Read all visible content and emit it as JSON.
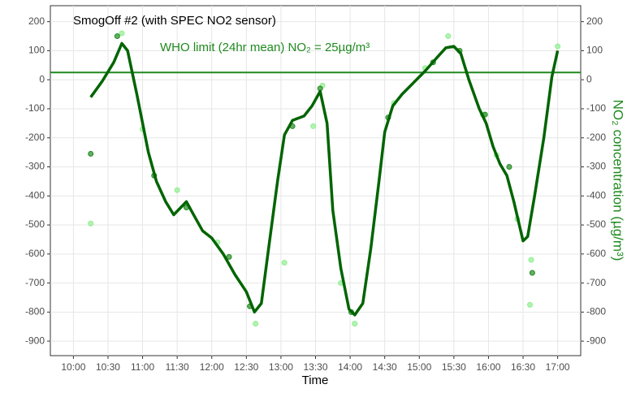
{
  "chart_data": {
    "type": "line",
    "title": "SmogOff #2 (with SPEC NO2 sensor)",
    "annotation": "WHO limit (24hr mean) NO₂ = 25µg/m³",
    "x_label": "Time",
    "y2_label": "NO₂ concentration (µg/m³)",
    "xlim": [
      "09:40",
      "17:20"
    ],
    "xticks": [
      "10:00",
      "10:30",
      "11:00",
      "11:30",
      "12:00",
      "12:30",
      "13:00",
      "13:30",
      "14:00",
      "14:30",
      "15:00",
      "15:30",
      "16:00",
      "16:30",
      "17:00"
    ],
    "ylim": [
      -950,
      255
    ],
    "yticks": [
      200,
      100,
      0,
      -100,
      -200,
      -300,
      -400,
      -500,
      -600,
      -700,
      -800,
      -900
    ],
    "y2lim": [
      -950,
      255
    ],
    "y2ticks": [
      200,
      100,
      0,
      -100,
      -200,
      -300,
      -400,
      -500,
      -600,
      -700,
      -800,
      -900
    ],
    "grid": true,
    "hline": {
      "value": 25,
      "color": "#1f8a1f"
    },
    "series": [
      {
        "color": "#006400",
        "x": [
          "10:15",
          "10:25",
          "10:35",
          "10:42",
          "10:47",
          "10:55",
          "11:00",
          "11:05",
          "11:12",
          "11:20",
          "11:27",
          "11:38",
          "11:45",
          "11:52",
          "12:00",
          "12:10",
          "12:20",
          "12:30",
          "12:37",
          "12:43",
          "12:50",
          "12:57",
          "13:03",
          "13:10",
          "13:20",
          "13:27",
          "13:34",
          "13:40",
          "13:45",
          "13:52",
          "13:59",
          "14:04",
          "14:11",
          "14:18",
          "14:25",
          "14:30",
          "14:37",
          "14:45",
          "14:55",
          "15:05",
          "15:15",
          "15:23",
          "15:30",
          "15:36",
          "15:43",
          "15:52",
          "15:58",
          "16:04",
          "16:10",
          "16:16",
          "16:22",
          "16:30",
          "16:34",
          "16:40",
          "16:48",
          "16:55",
          "17:00"
        ],
        "values": [
          -60,
          -5,
          60,
          125,
          100,
          -50,
          -150,
          -250,
          -350,
          -420,
          -465,
          -420,
          -470,
          -520,
          -545,
          -600,
          -670,
          -730,
          -800,
          -770,
          -560,
          -350,
          -190,
          -140,
          -125,
          -90,
          -40,
          -150,
          -450,
          -650,
          -790,
          -810,
          -770,
          -580,
          -350,
          -180,
          -90,
          -50,
          -10,
          30,
          75,
          110,
          115,
          90,
          0,
          -100,
          -150,
          -230,
          -290,
          -330,
          -420,
          -555,
          -540,
          -400,
          -200,
          10,
          100
        ]
      }
    ],
    "scatter": [
      {
        "color": "#90ee90",
        "x": [
          "10:15",
          "10:42",
          "11:00",
          "11:30",
          "12:05",
          "12:38",
          "13:03",
          "13:28",
          "13:36",
          "13:52",
          "14:04",
          "14:38",
          "15:05",
          "15:25",
          "15:55",
          "16:07",
          "16:25",
          "16:37",
          "16:36",
          "17:00"
        ],
        "values": [
          -495,
          160,
          -170,
          -380,
          -560,
          -840,
          -630,
          -160,
          -20,
          -700,
          -840,
          -80,
          40,
          150,
          -120,
          -260,
          -480,
          -620,
          -775,
          115
        ]
      },
      {
        "color": "#228b22",
        "x": [
          "10:15",
          "10:38",
          "11:10",
          "11:38",
          "12:15",
          "12:33",
          "13:10",
          "13:34",
          "14:01",
          "14:33",
          "15:12",
          "15:35",
          "15:57",
          "16:18",
          "16:38"
        ],
        "values": [
          -255,
          150,
          -330,
          -440,
          -610,
          -780,
          -160,
          -30,
          -800,
          -130,
          60,
          100,
          -120,
          -300,
          -665
        ]
      }
    ]
  }
}
